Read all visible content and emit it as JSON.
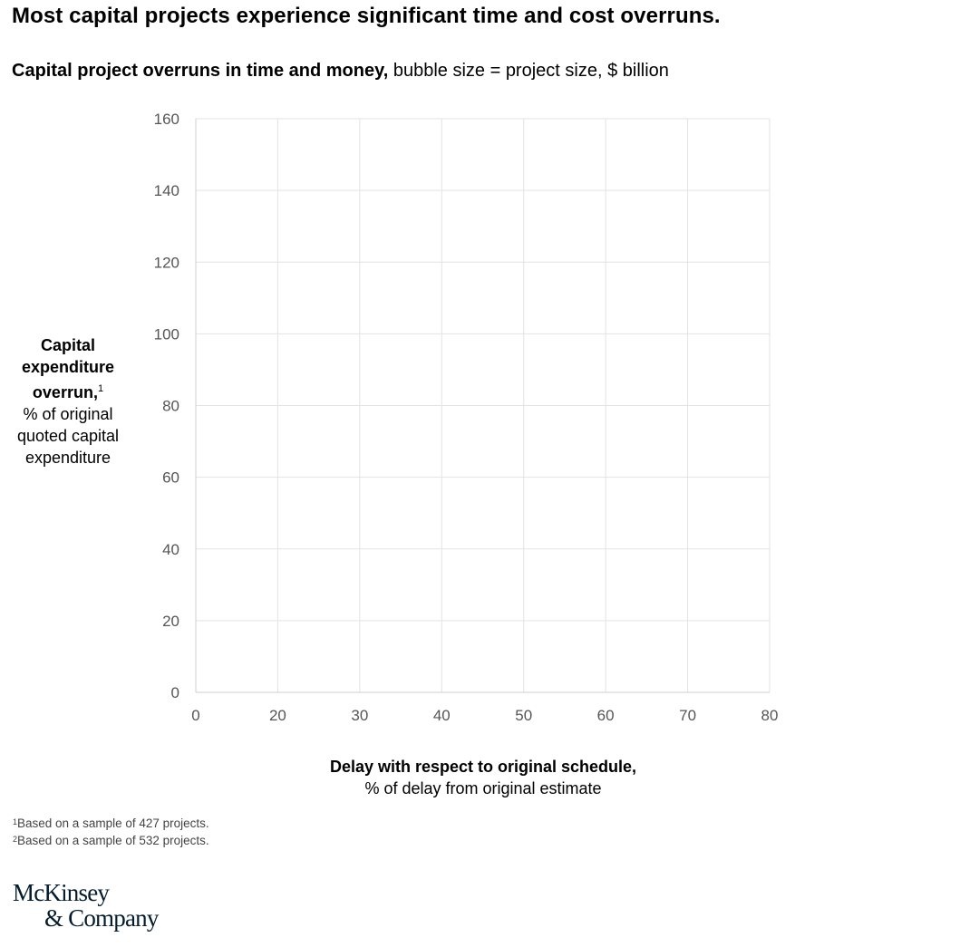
{
  "header": {
    "title": "Most capital projects experience significant time and cost overruns.",
    "subtitle_bold": "Capital project overruns in time and money,",
    "subtitle_rest": " bubble size = project size, $ billion"
  },
  "chart_data": {
    "type": "scatter",
    "title": "Capital project overruns in time and money",
    "subtitle": "bubble size = project size, $ billion",
    "ylabel_bold": "Capital expenditure overrun,",
    "ylabel_sup": "1",
    "ylabel_rest": "% of original quoted capital expenditure",
    "xlabel_bold": "Delay with respect to original schedule,",
    "xlabel_rest": "% of delay from original estimate",
    "x_ticks": [
      "0",
      "20",
      "30",
      "40",
      "50",
      "60",
      "70",
      "80"
    ],
    "y_ticks": [
      "0",
      "20",
      "40",
      "60",
      "80",
      "100",
      "120",
      "140",
      "160"
    ],
    "xlim": [
      0,
      80
    ],
    "ylim": [
      0,
      160
    ],
    "grid": true,
    "series": [],
    "grid_color": "#e3e3e3",
    "tick_color": "#555555"
  },
  "footnotes": [
    {
      "mark": "1",
      "text": "Based on a sample of 427 projects."
    },
    {
      "mark": "2",
      "text": "Based on a sample of 532 projects."
    }
  ],
  "logo": {
    "line1": "McKinsey",
    "line2": "& Company"
  }
}
